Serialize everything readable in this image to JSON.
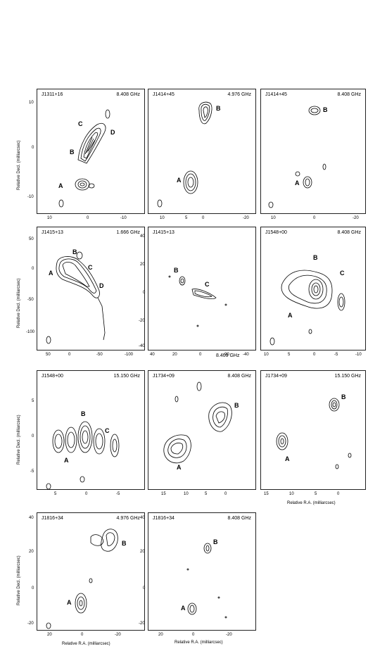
{
  "panels": [
    {
      "source": "J1311+16",
      "freq": "8.408 GHz",
      "components": [
        "A",
        "B",
        "C",
        "D"
      ],
      "yticks": [
        "10",
        "0",
        "-10"
      ],
      "xticks": [
        "10",
        "0",
        "-10"
      ]
    },
    {
      "source": "J1414+45",
      "freq": "4.976 GHz",
      "components": [
        "A",
        "B"
      ],
      "yticks": [
        "0",
        "-10",
        "-20",
        "-30"
      ],
      "xticks": [
        "10",
        "5",
        "0",
        "-5",
        "-10",
        "-20"
      ]
    },
    {
      "source": "J1414+45",
      "freq": "8.408 GHz",
      "components": [
        "A",
        "B"
      ],
      "yticks": [
        "0",
        "-10",
        "-20",
        "-30"
      ],
      "xticks": [
        "10",
        "5",
        "0",
        "-5",
        "-10",
        "-20"
      ]
    },
    {
      "source": "J1415+13",
      "freq": "1.666 GHz",
      "components": [
        "A",
        "B",
        "C",
        "D"
      ],
      "yticks": [
        "50",
        "0",
        "-50",
        "-100"
      ],
      "xticks": [
        "50",
        "0",
        "-50",
        "-100"
      ]
    },
    {
      "source": "J1415+13",
      "freq": "8.409 GHz",
      "components": [
        "B",
        "C"
      ],
      "yticks": [
        "40",
        "20",
        "0",
        "-20",
        "-40"
      ],
      "xticks": [
        "40",
        "20",
        "0",
        "-20",
        "-40"
      ]
    },
    {
      "source": "J1548+00",
      "freq": "8.408 GHz",
      "components": [
        "A",
        "B",
        "C"
      ],
      "yticks": [
        "5",
        "0",
        "-5",
        "-10"
      ],
      "xticks": [
        "10",
        "5",
        "0",
        "-5",
        "-10"
      ]
    },
    {
      "source": "J1548+00",
      "freq": "15.150 GHz",
      "components": [
        "A",
        "B",
        "C"
      ],
      "yticks": [
        "5",
        "0",
        "-5"
      ],
      "xticks": [
        "5",
        "0",
        "-5"
      ]
    },
    {
      "source": "J1734+09",
      "freq": "8.408 GHz",
      "components": [
        "A",
        "B"
      ],
      "yticks": [
        "5",
        "0",
        "-5",
        "-10"
      ],
      "xticks": [
        "15",
        "10",
        "5",
        "0"
      ]
    },
    {
      "source": "J1734+09",
      "freq": "15.150 GHz",
      "components": [
        "A",
        "B"
      ],
      "yticks": [
        "5",
        "0",
        "-5",
        "-10"
      ],
      "xticks": [
        "15",
        "10",
        "5",
        "0"
      ]
    },
    {
      "source": "J1816+34",
      "freq": "4.976 GHz",
      "components": [
        "A",
        "B"
      ],
      "yticks": [
        "40",
        "20",
        "0",
        "-20"
      ],
      "xticks": [
        "20",
        "0",
        "-20"
      ]
    },
    {
      "source": "J1816+34",
      "freq": "8.408 GHz",
      "components": [
        "A",
        "B"
      ],
      "yticks": [
        "40",
        "20",
        "0",
        "-20"
      ],
      "xticks": [
        "20",
        "0",
        "-20"
      ]
    }
  ],
  "labels": {
    "ylabel": "Relative Decl. (milliarcsec)",
    "xlabel": "Relative R.A. (milliarcsec)"
  }
}
